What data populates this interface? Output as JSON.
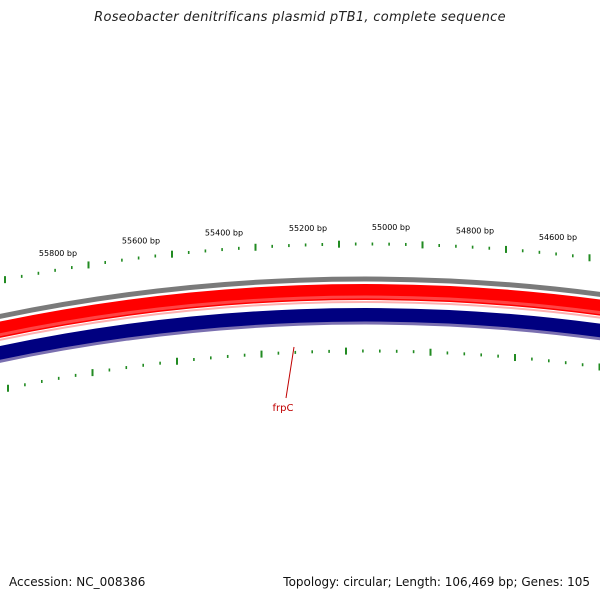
{
  "title": "Roseobacter denitrificans plasmid pTB1, complete sequence",
  "accession": "Accession: NC_008386",
  "summary": "Topology: circular; Length: 106,469 bp; Genes: 105",
  "colors": {
    "forward_strand": "#ff0000",
    "reverse_strand": "#000080",
    "backbone": "#808080",
    "ticks": "#228b22",
    "gene_label": "#c00000"
  },
  "scale_labels": [
    "55800 bp",
    "55600 bp",
    "55400 bp",
    "55200 bp",
    "55000 bp",
    "54800 bp",
    "54600 bp"
  ],
  "features": [
    {
      "label": "frpC",
      "strand": "reverse",
      "color": "#c00000"
    }
  ]
}
